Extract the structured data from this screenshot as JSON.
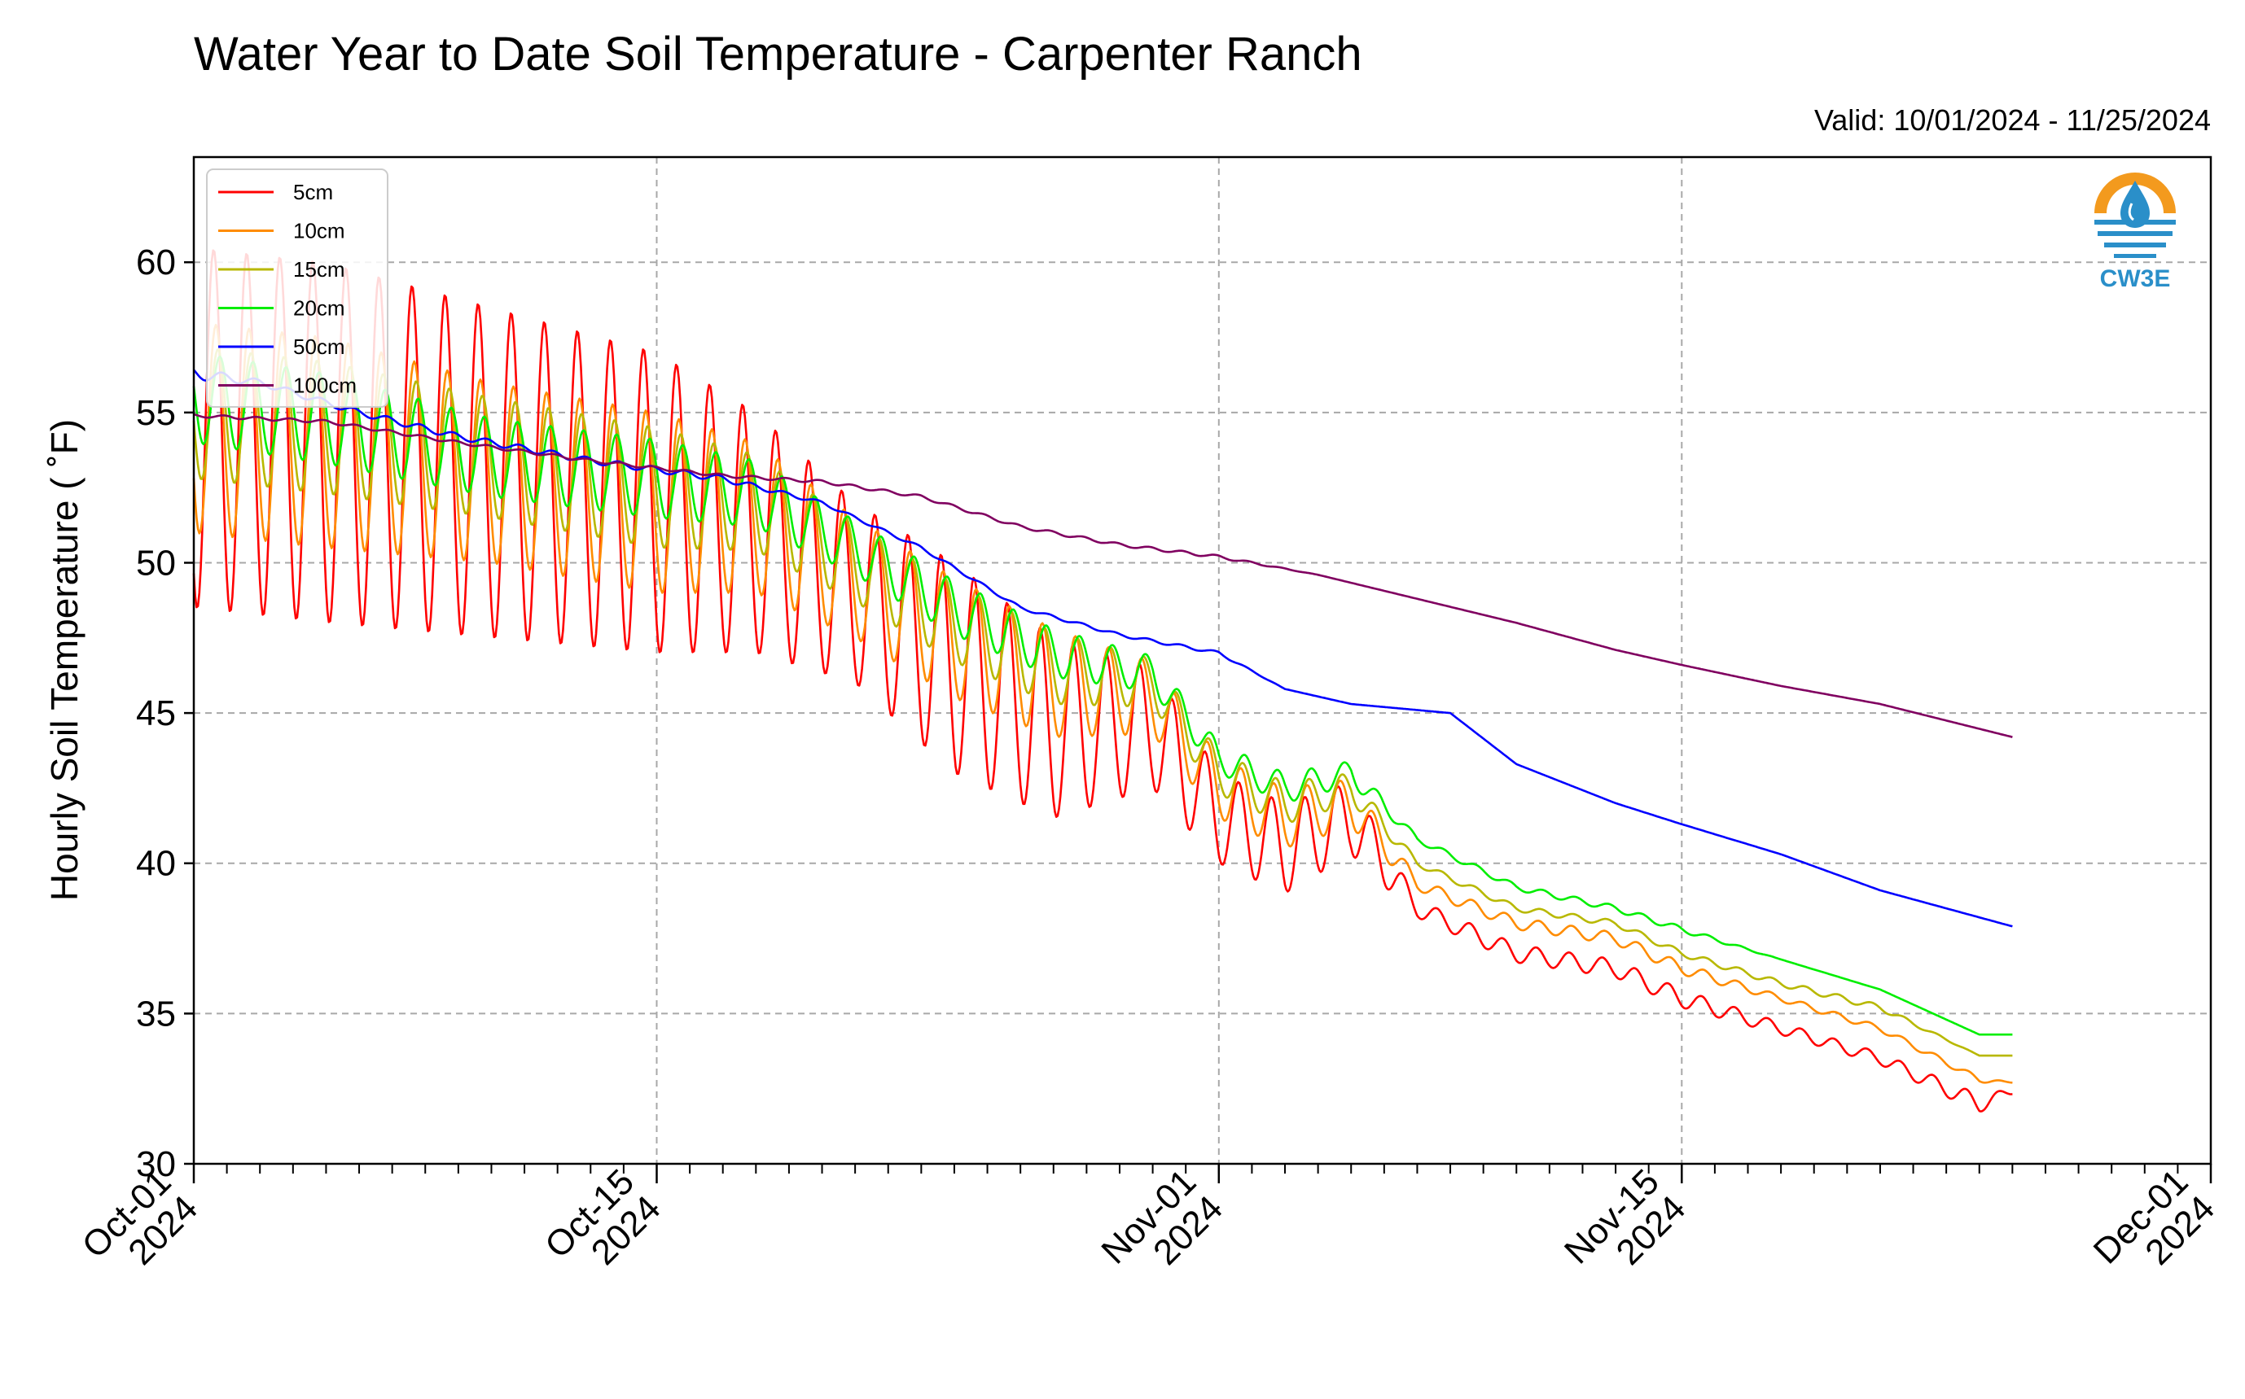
{
  "header": {
    "title": "Water Year to Date Soil Temperature - Carpenter Ranch",
    "valid": "Valid: 10/01/2024 - 11/25/2024"
  },
  "logo": {
    "text": "CW3E",
    "icon": "cw3e-water-drop-logo",
    "colors": [
      "#f39a1e",
      "#2a8fc9"
    ]
  },
  "chart_data": {
    "type": "line",
    "title": "Water Year to Date Soil Temperature - Carpenter Ranch",
    "ylabel": "Hourly Soil Temperature ( ˚F)",
    "xlabel": "",
    "x_start": "2024-10-01",
    "x_end": "2024-12-01",
    "ylim": [
      30,
      63.5
    ],
    "yticks": [
      "30",
      "35",
      "40",
      "45",
      "50",
      "55",
      "60"
    ],
    "xticks": [
      {
        "date": "2024-10-01",
        "line1": "Oct-01",
        "line2": "2024"
      },
      {
        "date": "2024-10-15",
        "line1": "Oct-15",
        "line2": "2024"
      },
      {
        "date": "2024-11-01",
        "line1": "Nov-01",
        "line2": "2024"
      },
      {
        "date": "2024-11-15",
        "line1": "Nov-15",
        "line2": "2024"
      },
      {
        "date": "2024-12-01",
        "line1": "Dec-01",
        "line2": "2024"
      }
    ],
    "grid": true,
    "legend_position": "top-left",
    "series": [
      {
        "name": "5cm",
        "color": "#ff0000",
        "dates": [
          "2024-10-01",
          "2024-10-05",
          "2024-10-10",
          "2024-10-15",
          "2024-10-18",
          "2024-10-21",
          "2024-10-24",
          "2024-10-27",
          "2024-10-30",
          "2024-11-01",
          "2024-11-03",
          "2024-11-05",
          "2024-11-07",
          "2024-11-10",
          "2024-11-13",
          "2024-11-15",
          "2024-11-18",
          "2024-11-21",
          "2024-11-24",
          "2024-11-25"
        ],
        "means": [
          54.5,
          54.0,
          53.0,
          52.0,
          51.0,
          49.0,
          46.5,
          44.5,
          44.5,
          41.5,
          40.5,
          41.5,
          38.5,
          37.0,
          36.5,
          35.5,
          34.5,
          33.5,
          32.0,
          32.4
        ],
        "amps": [
          6.0,
          6.0,
          5.5,
          5.0,
          4.0,
          3.0,
          3.5,
          3.0,
          2.0,
          1.5,
          1.5,
          1.2,
          0.3,
          0.3,
          0.3,
          0.3,
          0.2,
          0.2,
          0.3,
          0.1
        ]
      },
      {
        "name": "10cm",
        "color": "#ff8c00",
        "dates": [
          "2024-10-01",
          "2024-10-05",
          "2024-10-10",
          "2024-10-15",
          "2024-10-18",
          "2024-10-21",
          "2024-10-24",
          "2024-10-27",
          "2024-10-30",
          "2024-11-01",
          "2024-11-03",
          "2024-11-05",
          "2024-11-07",
          "2024-11-10",
          "2024-11-13",
          "2024-11-15",
          "2024-11-18",
          "2024-11-21",
          "2024-11-24",
          "2024-11-25"
        ],
        "means": [
          54.5,
          54.0,
          53.0,
          52.0,
          51.5,
          49.5,
          47.5,
          46.0,
          45.5,
          42.5,
          41.5,
          42.0,
          39.3,
          38.0,
          37.5,
          36.5,
          35.5,
          34.5,
          32.8,
          32.7
        ],
        "amps": [
          3.5,
          3.5,
          3.0,
          3.0,
          2.5,
          2.0,
          2.0,
          1.8,
          1.2,
          1.0,
          1.0,
          0.8,
          0.2,
          0.2,
          0.2,
          0.2,
          0.1,
          0.1,
          0.1,
          0.0
        ]
      },
      {
        "name": "15cm",
        "color": "#b8b800",
        "dates": [
          "2024-10-01",
          "2024-10-05",
          "2024-10-10",
          "2024-10-15",
          "2024-10-18",
          "2024-10-21",
          "2024-10-24",
          "2024-10-27",
          "2024-10-30",
          "2024-11-01",
          "2024-11-03",
          "2024-11-05",
          "2024-11-07",
          "2024-11-10",
          "2024-11-13",
          "2024-11-15",
          "2024-11-18",
          "2024-11-21",
          "2024-11-24",
          "2024-11-25"
        ],
        "means": [
          55.0,
          54.5,
          53.5,
          52.5,
          52.0,
          50.0,
          48.0,
          46.5,
          46.0,
          43.0,
          42.0,
          42.5,
          40.0,
          38.5,
          38.0,
          37.0,
          36.0,
          35.2,
          33.6,
          33.6
        ],
        "amps": [
          2.2,
          2.2,
          2.0,
          2.0,
          1.6,
          1.3,
          1.3,
          1.2,
          0.8,
          0.7,
          0.7,
          0.5,
          0.1,
          0.1,
          0.1,
          0.1,
          0.1,
          0.1,
          0.0,
          0.0
        ]
      },
      {
        "name": "20cm",
        "color": "#00ee00",
        "dates": [
          "2024-10-01",
          "2024-10-05",
          "2024-10-10",
          "2024-10-15",
          "2024-10-18",
          "2024-10-21",
          "2024-10-24",
          "2024-10-27",
          "2024-10-30",
          "2024-11-01",
          "2024-11-03",
          "2024-11-05",
          "2024-11-07",
          "2024-11-10",
          "2024-11-13",
          "2024-11-15",
          "2024-11-18",
          "2024-11-21",
          "2024-11-24",
          "2024-11-25"
        ],
        "means": [
          55.5,
          54.8,
          53.5,
          52.8,
          52.3,
          50.5,
          48.5,
          47.0,
          46.3,
          43.5,
          42.5,
          43.0,
          40.8,
          39.2,
          38.5,
          37.8,
          36.8,
          35.8,
          34.3,
          34.3
        ],
        "amps": [
          1.5,
          1.5,
          1.3,
          1.3,
          1.1,
          0.9,
          0.9,
          0.8,
          0.6,
          0.5,
          0.5,
          0.4,
          0.1,
          0.1,
          0.1,
          0.1,
          0.0,
          0.0,
          0.0,
          0.0
        ]
      },
      {
        "name": "50cm",
        "color": "#0000ff",
        "dates": [
          "2024-10-01",
          "2024-10-03",
          "2024-10-06",
          "2024-10-09",
          "2024-10-13",
          "2024-10-17",
          "2024-10-20",
          "2024-10-23",
          "2024-10-26",
          "2024-10-29",
          "2024-11-01",
          "2024-11-03",
          "2024-11-05",
          "2024-11-08",
          "2024-11-10",
          "2024-11-13",
          "2024-11-15",
          "2024-11-18",
          "2024-11-21",
          "2024-11-25"
        ],
        "means": [
          56.3,
          56.0,
          55.0,
          54.2,
          53.4,
          52.8,
          52.0,
          50.5,
          48.5,
          47.6,
          47.0,
          45.8,
          45.3,
          45.0,
          43.3,
          42.0,
          41.3,
          40.3,
          39.1,
          37.9
        ],
        "amps": [
          0.2,
          0.1,
          0.1,
          0.1,
          0.1,
          0.1,
          0.05,
          0.05,
          0.05,
          0.05,
          0.05,
          0.0,
          0.0,
          0.0,
          0.0,
          0.0,
          0.0,
          0.0,
          0.0,
          0.0
        ]
      },
      {
        "name": "100cm",
        "color": "#800060",
        "dates": [
          "2024-10-01",
          "2024-10-05",
          "2024-10-09",
          "2024-10-13",
          "2024-10-17",
          "2024-10-20",
          "2024-10-23",
          "2024-10-26",
          "2024-10-29",
          "2024-11-01",
          "2024-11-04",
          "2024-11-07",
          "2024-11-10",
          "2024-11-13",
          "2024-11-15",
          "2024-11-18",
          "2024-11-21",
          "2024-11-25"
        ],
        "means": [
          54.9,
          54.7,
          54.0,
          53.4,
          52.9,
          52.7,
          52.2,
          51.2,
          50.6,
          50.2,
          49.6,
          48.8,
          48.0,
          47.1,
          46.6,
          45.9,
          45.3,
          44.2
        ],
        "amps": [
          0.05,
          0.05,
          0.05,
          0.05,
          0.05,
          0.05,
          0.05,
          0.05,
          0.05,
          0.05,
          0.0,
          0.0,
          0.0,
          0.0,
          0.0,
          0.0,
          0.0,
          0.0
        ]
      }
    ]
  }
}
